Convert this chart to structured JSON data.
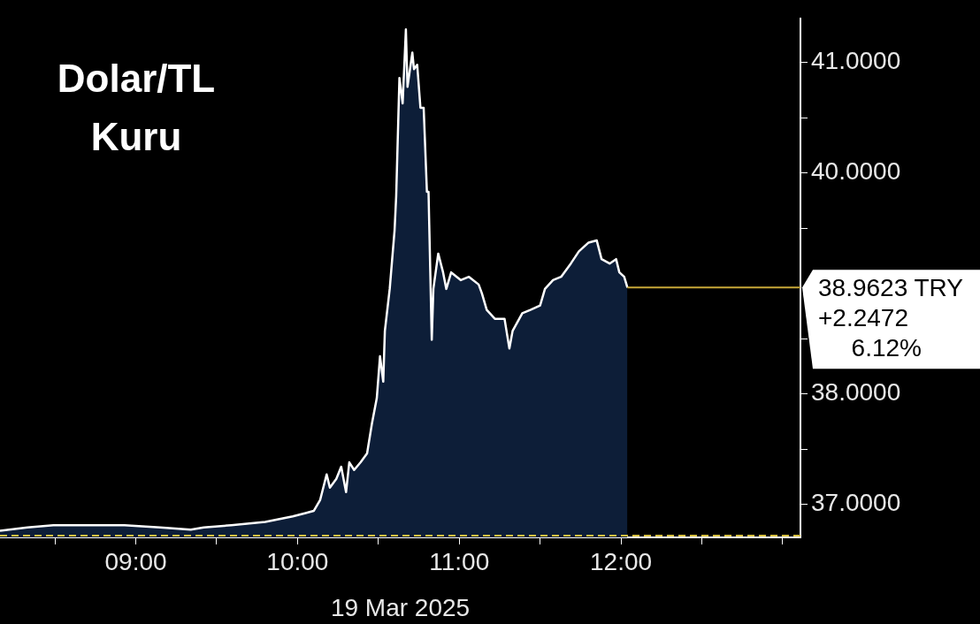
{
  "chart_data": {
    "type": "area",
    "title": "Dolar/TL Kuru",
    "xlabel": "19 Mar 2025",
    "xlim": [
      8.16,
      13.11
    ],
    "ylim": [
      36.7,
      41.4
    ],
    "xticks": [
      {
        "value": 8.5,
        "label": null
      },
      {
        "value": 9,
        "label": "09:00"
      },
      {
        "value": 9.5,
        "label": null
      },
      {
        "value": 10,
        "label": "10:00"
      },
      {
        "value": 10.5,
        "label": null
      },
      {
        "value": 11,
        "label": "11:00"
      },
      {
        "value": 11.5,
        "label": null
      },
      {
        "value": 12,
        "label": "12:00"
      },
      {
        "value": 12.5,
        "label": null
      },
      {
        "value": 13,
        "label": null
      }
    ],
    "yticks": [
      {
        "value": 37,
        "label": "37.0000"
      },
      {
        "value": 37.5,
        "label": null
      },
      {
        "value": 38,
        "label": "38.0000"
      },
      {
        "value": 38.5,
        "label": null
      },
      {
        "value": 39.5,
        "label": null
      },
      {
        "value": 40,
        "label": "40.0000"
      },
      {
        "value": 40.5,
        "label": null
      },
      {
        "value": 41,
        "label": "41.0000"
      }
    ],
    "grid": false,
    "legend": false,
    "series": [
      {
        "color": "#ffffff",
        "x": [
          8.16,
          8.33,
          8.49,
          8.71,
          8.93,
          9.15,
          9.34,
          9.42,
          9.59,
          9.8,
          9.97,
          10.05,
          10.1,
          10.14,
          10.18,
          10.2,
          10.24,
          10.27,
          10.3,
          10.32,
          10.35,
          10.39,
          10.43,
          10.46,
          10.49,
          10.51,
          10.53,
          10.54,
          10.57,
          10.6,
          10.61,
          10.63,
          10.65,
          10.67,
          10.68,
          10.71,
          10.72,
          10.74,
          10.76,
          10.78,
          10.8,
          10.81,
          10.83,
          10.84,
          10.87,
          10.9,
          10.92,
          10.95,
          11.01,
          11.06,
          11.12,
          11.14,
          11.17,
          11.22,
          11.28,
          11.31,
          11.33,
          11.39,
          11.44,
          11.5,
          11.53,
          11.58,
          11.63,
          11.69,
          11.74,
          11.8,
          11.85,
          11.88,
          11.93,
          11.97,
          11.99,
          12.02,
          12.04
        ],
        "values": [
          36.76,
          36.79,
          36.81,
          36.81,
          36.81,
          36.79,
          36.77,
          36.79,
          36.81,
          36.84,
          36.89,
          36.92,
          36.94,
          37.04,
          37.27,
          37.15,
          37.23,
          37.34,
          37.11,
          37.38,
          37.31,
          37.38,
          37.46,
          37.73,
          37.96,
          38.34,
          38.11,
          38.57,
          38.95,
          39.48,
          39.79,
          40.86,
          40.63,
          41.3,
          40.78,
          41.09,
          40.94,
          40.98,
          40.59,
          40.59,
          39.83,
          39.83,
          38.49,
          38.95,
          39.27,
          39.1,
          38.95,
          39.1,
          39.03,
          39.06,
          38.99,
          38.91,
          38.76,
          38.68,
          38.68,
          38.41,
          38.57,
          38.73,
          38.76,
          38.8,
          38.95,
          39.03,
          39.06,
          39.18,
          39.29,
          39.37,
          39.39,
          39.22,
          39.18,
          39.22,
          39.1,
          39.06,
          38.9623
        ]
      }
    ],
    "ref_lines": [
      {
        "axis": "y",
        "value": 38.9623,
        "label": "38.9623 TRY",
        "color": "#c8a838"
      },
      {
        "axis": "y",
        "value": 36.7151,
        "color": "#d8c040",
        "line_style": "dashed"
      }
    ],
    "annotations": [
      "+2.2472",
      "6.12%"
    ]
  }
}
